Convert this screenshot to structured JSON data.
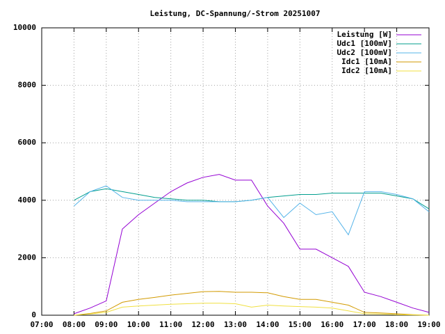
{
  "chart_data": {
    "type": "line",
    "title": "Leistung, DC-Spannung/-Strom 20251007",
    "x": [
      8,
      8.5,
      9,
      9.5,
      10,
      10.5,
      11,
      11.5,
      12,
      12.5,
      13,
      13.5,
      14,
      14.5,
      15,
      15.5,
      16,
      16.5,
      17,
      17.5,
      18,
      18.5,
      19
    ],
    "series": [
      {
        "name": "Leistung [W]",
        "color": "#9400d3",
        "values": [
          50,
          250,
          500,
          3000,
          3500,
          3900,
          4300,
          4600,
          4800,
          4900,
          4700,
          4700,
          3800,
          3200,
          2300,
          2300,
          2000,
          1700,
          800,
          650,
          450,
          250,
          100
        ]
      },
      {
        "name": "Udc1 [100mV]",
        "color": "#009e8e",
        "values": [
          4000,
          4300,
          4400,
          4300,
          4200,
          4100,
          4050,
          4000,
          4000,
          3950,
          3950,
          4000,
          4100,
          4150,
          4200,
          4200,
          4250,
          4250,
          4250,
          4250,
          4150,
          4050,
          3700
        ]
      },
      {
        "name": "Udc2 [100mV]",
        "color": "#56b4e9",
        "values": [
          3800,
          4300,
          4500,
          4100,
          4000,
          4000,
          4000,
          3950,
          3950,
          3950,
          3950,
          4000,
          4100,
          3400,
          3900,
          3500,
          3600,
          2800,
          4300,
          4300,
          4200,
          4050,
          3600
        ]
      },
      {
        "name": "Idc1 [10mA]",
        "color": "#d29a00",
        "values": [
          0,
          60,
          150,
          450,
          550,
          620,
          700,
          760,
          820,
          830,
          800,
          800,
          780,
          650,
          550,
          550,
          450,
          350,
          100,
          80,
          50,
          20,
          0
        ]
      },
      {
        "name": "Idc2 [10mA]",
        "color": "#f0e040",
        "values": [
          0,
          40,
          100,
          280,
          320,
          350,
          380,
          400,
          420,
          420,
          400,
          280,
          350,
          320,
          300,
          280,
          250,
          150,
          50,
          40,
          20,
          10,
          0
        ]
      }
    ],
    "xlim": [
      7,
      19
    ],
    "xticks": [
      {
        "value": 7,
        "label": "07:00"
      },
      {
        "value": 8,
        "label": "08:00"
      },
      {
        "value": 9,
        "label": "09:00"
      },
      {
        "value": 10,
        "label": "10:00"
      },
      {
        "value": 11,
        "label": "11:00"
      },
      {
        "value": 12,
        "label": "12:00"
      },
      {
        "value": 13,
        "label": "13:00"
      },
      {
        "value": 14,
        "label": "14:00"
      },
      {
        "value": 15,
        "label": "15:00"
      },
      {
        "value": 16,
        "label": "16:00"
      },
      {
        "value": 17,
        "label": "17:00"
      },
      {
        "value": 18,
        "label": "18:00"
      },
      {
        "value": 19,
        "label": "19:00"
      }
    ],
    "ylim": [
      0,
      10000
    ],
    "yticks": [
      0,
      2000,
      4000,
      6000,
      8000,
      10000
    ],
    "grid": true,
    "legend": "top-right"
  }
}
